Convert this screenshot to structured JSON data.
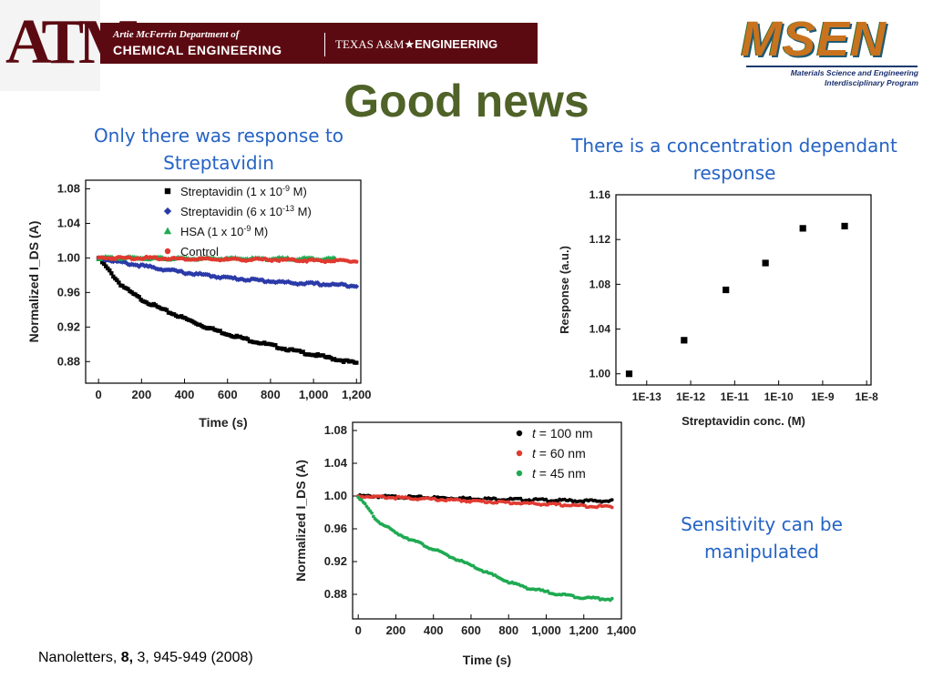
{
  "header": {
    "tamu_logo_text": "ATM",
    "dept_line1": "Artie McFerrin Department of",
    "dept_line2": "CHEMICAL ENGINEERING",
    "texas_pre": "TEXAS A&M",
    "texas_star": "★",
    "texas_post": "ENGINEERING",
    "msen_word": "MSEN",
    "msen_sub1": "Materials Science and Engineering",
    "msen_sub2": "Interdisciplinary Program"
  },
  "slide": {
    "title": "Good news",
    "caption_left": "Only there was response to Streptavidin",
    "caption_right": "There is a concentration dependant response",
    "caption_bottom_right": "Sensitivity can be manipulated",
    "citation_journal": "Nanoletters,",
    "citation_volume": "8,",
    "citation_rest": "3, 945-949 (2008)"
  },
  "colors": {
    "title": "#4f6228",
    "caption": "#2563c4",
    "tamu_maroon": "#5c0a12",
    "black": "#000000",
    "blue": "#2b3aa8",
    "green": "#1faa52",
    "red": "#e03a30"
  },
  "chart_data": [
    {
      "type": "scatter",
      "xlabel": "Time (s)",
      "ylabel": "Normalized I_DS (A)",
      "xlim": [
        -60,
        1220
      ],
      "ylim": [
        0.855,
        1.09
      ],
      "xticks": [
        0,
        200,
        400,
        600,
        800,
        1000,
        1200
      ],
      "xtick_labels": [
        "0",
        "200",
        "400",
        "600",
        "800",
        "1,000",
        "1,200"
      ],
      "yticks": [
        0.88,
        0.92,
        0.96,
        1.0,
        1.04,
        1.08
      ],
      "ytick_labels": [
        "0.88",
        "0.92",
        "0.96",
        "1.00",
        "1.04",
        "1.08"
      ],
      "legend": "top-right",
      "series": [
        {
          "name": "Streptavidin (1 x 10-9 M)",
          "legend_base": "Streptavidin (1 x 10",
          "legend_exp": "-9",
          "legend_tail": " M)",
          "marker": "square",
          "color": "#000000",
          "x": [
            0,
            50,
            100,
            150,
            200,
            300,
            400,
            500,
            600,
            700,
            800,
            900,
            1000,
            1100,
            1200
          ],
          "y": [
            1.0,
            0.985,
            0.97,
            0.96,
            0.952,
            0.94,
            0.93,
            0.92,
            0.912,
            0.905,
            0.899,
            0.893,
            0.888,
            0.883,
            0.878
          ]
        },
        {
          "name": "Streptavidin (6 x 10-13 M)",
          "legend_base": "Streptavidin (6 x 10",
          "legend_exp": "-13",
          "legend_tail": " M)",
          "marker": "diamond",
          "color": "#2b3aa8",
          "x": [
            0,
            100,
            200,
            300,
            400,
            500,
            600,
            700,
            800,
            900,
            1000,
            1100,
            1200
          ],
          "y": [
            1.0,
            0.995,
            0.991,
            0.987,
            0.983,
            0.98,
            0.977,
            0.975,
            0.973,
            0.971,
            0.97,
            0.969,
            0.968
          ]
        },
        {
          "name": "HSA (1 x 10-9 M)",
          "legend_base": "HSA (1 x 10",
          "legend_exp": "-9",
          "legend_tail": " M)",
          "marker": "triangle",
          "color": "#1faa52",
          "x": [
            0,
            100,
            200,
            400,
            600,
            800,
            1000,
            1100
          ],
          "y": [
            1.0,
            1.0,
            1.0,
            0.999,
            0.999,
            0.999,
            0.999,
            0.999
          ]
        },
        {
          "name": "Control",
          "legend_base": "Control",
          "legend_exp": "",
          "legend_tail": "",
          "marker": "circle",
          "color": "#e03a30",
          "x": [
            0,
            200,
            400,
            600,
            800,
            1000,
            1200
          ],
          "y": [
            1.0,
            1.0,
            0.999,
            0.998,
            0.998,
            0.997,
            0.996
          ]
        }
      ]
    },
    {
      "type": "scatter",
      "xlabel": "Streptavidin conc. (M)",
      "ylabel": "Response (a.u.)",
      "xscale": "log",
      "xlim": [
        -13.7,
        -7.9
      ],
      "ylim": [
        0.99,
        1.16
      ],
      "xticks": [
        -13,
        -12,
        -11,
        -10,
        -9,
        -8
      ],
      "xtick_labels": [
        "1E-13",
        "1E-12",
        "1E-11",
        "1E-10",
        "1E-9",
        "1E-8"
      ],
      "yticks": [
        1.0,
        1.04,
        1.08,
        1.12,
        1.16
      ],
      "ytick_labels": [
        "1.00",
        "1.04",
        "1.08",
        "1.12",
        "1.16"
      ],
      "series": [
        {
          "marker": "square",
          "color": "#000000",
          "x": [
            -13.4,
            -12.15,
            -11.2,
            -10.3,
            -9.45,
            -8.5
          ],
          "y": [
            1.0,
            1.03,
            1.075,
            1.099,
            1.13,
            1.132
          ]
        }
      ]
    },
    {
      "type": "scatter",
      "xlabel": "Time (s)",
      "ylabel": "Normalized I_DS (A)",
      "xlim": [
        -30,
        1400
      ],
      "ylim": [
        0.85,
        1.09
      ],
      "xticks": [
        0,
        200,
        400,
        600,
        800,
        1000,
        1200,
        1400
      ],
      "xtick_labels": [
        "0",
        "200",
        "400",
        "600",
        "800",
        "1,000",
        "1,200",
        "1,400"
      ],
      "yticks": [
        0.88,
        0.92,
        0.96,
        1.0,
        1.04,
        1.08
      ],
      "ytick_labels": [
        "0.88",
        "0.92",
        "0.96",
        "1.00",
        "1.04",
        "1.08"
      ],
      "legend": "top-right",
      "series": [
        {
          "name": "t = 100 nm",
          "legend_var": "t",
          "legend_rest": " = 100 nm",
          "marker": "circle",
          "color": "#000000",
          "x": [
            0,
            200,
            400,
            600,
            800,
            1000,
            1200,
            1350
          ],
          "y": [
            1.0,
            0.999,
            0.998,
            0.997,
            0.996,
            0.995,
            0.994,
            0.994
          ]
        },
        {
          "name": "t = 60 nm",
          "legend_var": "t",
          "legend_rest": " = 60 nm",
          "marker": "circle",
          "color": "#e03a30",
          "x": [
            0,
            200,
            400,
            600,
            800,
            1000,
            1200,
            1350
          ],
          "y": [
            1.0,
            0.998,
            0.996,
            0.994,
            0.992,
            0.99,
            0.988,
            0.987
          ]
        },
        {
          "name": "t = 45 nm",
          "legend_var": "t",
          "legend_rest": " = 45 nm",
          "marker": "circle",
          "color": "#1faa52",
          "x": [
            0,
            50,
            100,
            200,
            300,
            400,
            500,
            600,
            700,
            800,
            900,
            1000,
            1100,
            1200,
            1350
          ],
          "y": [
            1.0,
            0.985,
            0.97,
            0.955,
            0.945,
            0.935,
            0.925,
            0.915,
            0.905,
            0.895,
            0.888,
            0.883,
            0.879,
            0.876,
            0.874
          ]
        }
      ]
    }
  ]
}
